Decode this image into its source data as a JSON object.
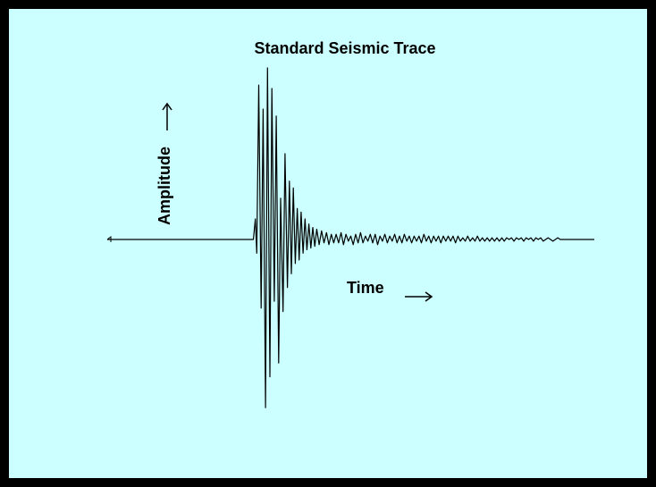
{
  "colors": {
    "background": "#ccffff",
    "border": "#000000",
    "trace": "#000000"
  },
  "chart_data": {
    "type": "line",
    "title": "Standard Seismic Trace",
    "xlabel": "Time",
    "ylabel": "Amplitude",
    "xlim": [
      0,
      100
    ],
    "ylim": [
      -100,
      100
    ],
    "grid": false,
    "legend": "none",
    "series": [
      {
        "values": [
          [
            0,
            0
          ],
          [
            30,
            0
          ],
          [
            30.4,
            12
          ],
          [
            30.7,
            -8
          ],
          [
            31.1,
            90
          ],
          [
            31.6,
            -40
          ],
          [
            32.0,
            76
          ],
          [
            32.5,
            -98
          ],
          [
            32.9,
            100
          ],
          [
            33.4,
            -80
          ],
          [
            33.8,
            88
          ],
          [
            34.3,
            -36
          ],
          [
            34.7,
            72
          ],
          [
            35.2,
            -72
          ],
          [
            35.6,
            24
          ],
          [
            36.1,
            -42
          ],
          [
            36.5,
            50
          ],
          [
            37.0,
            -28
          ],
          [
            37.4,
            34
          ],
          [
            37.8,
            -20
          ],
          [
            38.2,
            30
          ],
          [
            38.6,
            -14
          ],
          [
            39.0,
            18
          ],
          [
            39.4,
            -12
          ],
          [
            39.8,
            16
          ],
          [
            40.2,
            -8
          ],
          [
            40.6,
            12
          ],
          [
            41.0,
            -6
          ],
          [
            41.4,
            9
          ],
          [
            41.8,
            -5
          ],
          [
            42.2,
            7
          ],
          [
            42.6,
            -4
          ],
          [
            43.0,
            6
          ],
          [
            43.5,
            -3
          ],
          [
            44.0,
            5
          ],
          [
            44.5,
            -2
          ],
          [
            45.0,
            4
          ],
          [
            45.5,
            -3
          ],
          [
            46.0,
            3
          ],
          [
            46.5,
            -2
          ],
          [
            47.0,
            3
          ],
          [
            47.5,
            -2
          ],
          [
            48.0,
            4
          ],
          [
            48.5,
            -3
          ],
          [
            49.0,
            3
          ],
          [
            49.5,
            -1
          ],
          [
            50.0,
            2
          ],
          [
            50.5,
            -3
          ],
          [
            51.0,
            3
          ],
          [
            51.5,
            -2
          ],
          [
            52.0,
            4
          ],
          [
            52.5,
            -2
          ],
          [
            53.0,
            2
          ],
          [
            53.5,
            -1
          ],
          [
            54.0,
            3
          ],
          [
            54.5,
            -2
          ],
          [
            55.0,
            3
          ],
          [
            55.5,
            -3
          ],
          [
            56.0,
            2
          ],
          [
            56.5,
            -1
          ],
          [
            57.0,
            3
          ],
          [
            57.5,
            -2
          ],
          [
            58.0,
            2
          ],
          [
            58.5,
            -1
          ],
          [
            59.0,
            3
          ],
          [
            59.5,
            -2
          ],
          [
            60.0,
            2
          ],
          [
            60.5,
            -2
          ],
          [
            61.0,
            3
          ],
          [
            61.5,
            -1
          ],
          [
            62.0,
            2
          ],
          [
            62.5,
            -2
          ],
          [
            63.0,
            2
          ],
          [
            63.5,
            -1
          ],
          [
            64.0,
            2
          ],
          [
            64.5,
            -2
          ],
          [
            65.0,
            3
          ],
          [
            65.5,
            -1
          ],
          [
            66.0,
            2
          ],
          [
            66.5,
            -2
          ],
          [
            67.0,
            2
          ],
          [
            67.5,
            -1
          ],
          [
            68.0,
            2
          ],
          [
            68.5,
            -2
          ],
          [
            69.0,
            2
          ],
          [
            69.5,
            -1
          ],
          [
            70.0,
            2
          ],
          [
            70.5,
            -1
          ],
          [
            71.0,
            2
          ],
          [
            71.5,
            -2
          ],
          [
            72.0,
            2
          ],
          [
            72.5,
            -1
          ],
          [
            73.0,
            1
          ],
          [
            73.5,
            -1
          ],
          [
            74.0,
            2
          ],
          [
            74.5,
            -1
          ],
          [
            75.0,
            1
          ],
          [
            75.5,
            -1
          ],
          [
            76.0,
            2
          ],
          [
            76.5,
            -1
          ],
          [
            77.0,
            1
          ],
          [
            77.5,
            -1
          ],
          [
            78.0,
            1
          ],
          [
            78.5,
            -1
          ],
          [
            79.0,
            1
          ],
          [
            79.5,
            -1
          ],
          [
            80.0,
            1
          ],
          [
            80.5,
            -1
          ],
          [
            81.0,
            1
          ],
          [
            81.5,
            -1
          ],
          [
            82.0,
            1
          ],
          [
            82.5,
            0
          ],
          [
            83.0,
            1
          ],
          [
            83.5,
            -1
          ],
          [
            84.0,
            1
          ],
          [
            84.5,
            0
          ],
          [
            85.0,
            1
          ],
          [
            85.5,
            -1
          ],
          [
            86.0,
            1
          ],
          [
            86.5,
            0
          ],
          [
            87.0,
            1
          ],
          [
            87.5,
            -1
          ],
          [
            88.0,
            1
          ],
          [
            88.5,
            0
          ],
          [
            89.0,
            1
          ],
          [
            89.5,
            -1
          ],
          [
            90.0,
            0
          ],
          [
            90.5,
            1
          ],
          [
            91.0,
            0
          ],
          [
            91.5,
            -1
          ],
          [
            92.0,
            0
          ],
          [
            92.5,
            1
          ],
          [
            93.0,
            0
          ],
          [
            94.0,
            0
          ],
          [
            100,
            0
          ]
        ]
      }
    ]
  }
}
